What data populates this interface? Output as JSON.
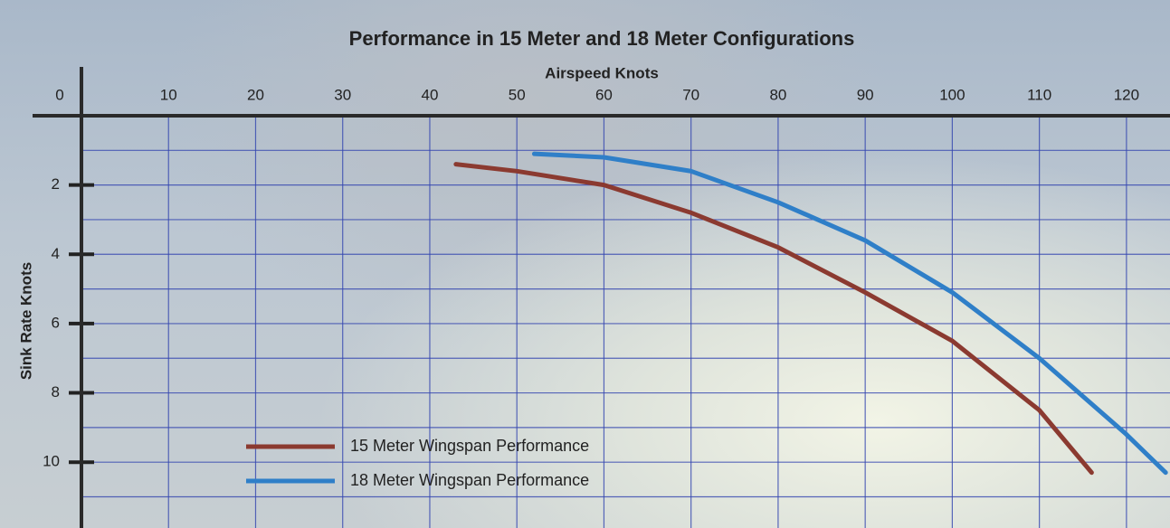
{
  "chart_data": {
    "type": "line",
    "title": "Performance in 15 Meter and 18 Meter Configurations",
    "x_label": "Airspeed Knots",
    "y_label": "Sink Rate Knots",
    "xlim": [
      0,
      125
    ],
    "ylim": [
      0,
      11.9
    ],
    "y_inverted": true,
    "grid": true,
    "xticks": [
      0,
      10,
      20,
      30,
      40,
      50,
      60,
      70,
      80,
      90,
      100,
      110,
      120
    ],
    "yticks": [
      2,
      4,
      6,
      8,
      10
    ],
    "y_minor_ticks": [
      1,
      3,
      5,
      7,
      9,
      11
    ],
    "series": [
      {
        "name": "15 Meter Wingspan Performance",
        "color": "#8b3a30",
        "x": [
          43,
          50,
          60,
          70,
          80,
          90,
          100,
          110,
          116
        ],
        "values": [
          1.4,
          1.6,
          2.0,
          2.8,
          3.8,
          5.1,
          6.5,
          8.5,
          10.3
        ]
      },
      {
        "name": "18 Meter Wingspan Performance",
        "color": "#2f7fc8",
        "x": [
          52,
          60,
          70,
          80,
          90,
          100,
          110,
          120,
          124.5
        ],
        "values": [
          1.1,
          1.2,
          1.6,
          2.5,
          3.6,
          5.1,
          7.0,
          9.2,
          10.3
        ]
      }
    ]
  }
}
